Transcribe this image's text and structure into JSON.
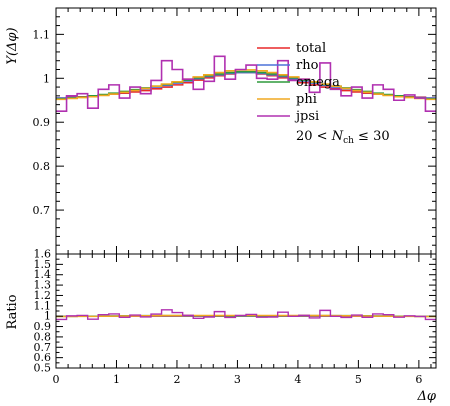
{
  "chart_data": [
    {
      "type": "line",
      "ylabel": "Y(Δφ)",
      "xlim": [
        0,
        6.2832
      ],
      "ylim": [
        0.6,
        1.16
      ],
      "y_ticks": [
        "0.7",
        "0.8",
        "0.9",
        "1",
        "1.1"
      ],
      "legend_placement": "top-right",
      "annotation": "20 < N_ch ≤ 30",
      "annotation_parts": {
        "pre": "20 < ",
        "n": "N",
        "sub": "ch",
        "post": " ≤ 30"
      },
      "bins": 36,
      "series": [
        {
          "name": "total",
          "color": "#e8282a",
          "values": [
            0.955,
            0.957,
            0.958,
            0.96,
            0.962,
            0.964,
            0.966,
            0.969,
            0.972,
            0.976,
            0.98,
            0.985,
            0.99,
            0.996,
            1.001,
            1.006,
            1.01,
            1.013,
            1.013,
            1.01,
            1.006,
            1.001,
            0.996,
            0.99,
            0.985,
            0.98,
            0.976,
            0.972,
            0.969,
            0.966,
            0.964,
            0.962,
            0.96,
            0.958,
            0.957,
            0.955
          ]
        },
        {
          "name": "rho",
          "color": "#4c72d8",
          "values": [
            0.955,
            0.956,
            0.957,
            0.959,
            0.962,
            0.965,
            0.968,
            0.972,
            0.976,
            0.98,
            0.984,
            0.989,
            0.994,
            0.999,
            1.004,
            1.008,
            1.011,
            1.013,
            1.013,
            1.011,
            1.008,
            1.004,
            0.999,
            0.994,
            0.989,
            0.984,
            0.98,
            0.976,
            0.972,
            0.968,
            0.965,
            0.962,
            0.959,
            0.957,
            0.956,
            0.955
          ]
        },
        {
          "name": "omega",
          "color": "#2e9a3c",
          "values": [
            0.953,
            0.955,
            0.957,
            0.96,
            0.963,
            0.966,
            0.97,
            0.974,
            0.978,
            0.982,
            0.986,
            0.991,
            0.996,
            1.001,
            1.006,
            1.01,
            1.013,
            1.015,
            1.015,
            1.013,
            1.01,
            1.006,
            1.001,
            0.996,
            0.991,
            0.986,
            0.982,
            0.978,
            0.974,
            0.97,
            0.966,
            0.963,
            0.96,
            0.957,
            0.955,
            0.953
          ]
        },
        {
          "name": "phi",
          "color": "#f0a820",
          "values": [
            0.952,
            0.954,
            0.956,
            0.958,
            0.961,
            0.964,
            0.968,
            0.972,
            0.977,
            0.982,
            0.987,
            0.992,
            0.998,
            1.003,
            1.008,
            1.013,
            1.017,
            1.019,
            1.019,
            1.017,
            1.013,
            1.008,
            1.003,
            0.998,
            0.992,
            0.987,
            0.982,
            0.977,
            0.972,
            0.968,
            0.964,
            0.961,
            0.958,
            0.956,
            0.954,
            0.952
          ]
        },
        {
          "name": "jpsi",
          "color": "#b030b0",
          "values": [
            0.925,
            0.96,
            0.965,
            0.932,
            0.975,
            0.985,
            0.955,
            0.98,
            0.965,
            0.995,
            1.04,
            1.02,
            0.998,
            0.975,
            0.993,
            1.05,
            0.998,
            1.02,
            1.03,
            1.0,
            0.998,
            1.04,
            0.995,
            0.998,
            0.968,
            1.035,
            0.975,
            0.96,
            0.98,
            0.955,
            0.985,
            0.975,
            0.95,
            0.962,
            0.955,
            0.925
          ]
        }
      ]
    },
    {
      "type": "line",
      "xlabel": "Δφ",
      "ylabel": "Ratio",
      "xlim": [
        0,
        6.2832
      ],
      "ylim": [
        0.5,
        1.6
      ],
      "x_ticks": [
        "0",
        "1",
        "2",
        "3",
        "4",
        "5",
        "6"
      ],
      "y_ticks": [
        "0.5",
        "0.6",
        "0.7",
        "0.8",
        "0.9",
        "1",
        "1.1",
        "1.2",
        "1.3",
        "1.4",
        "1.5",
        "1.6"
      ],
      "series": [
        {
          "name": "total",
          "color": "#e8282a",
          "values": [
            1,
            1,
            1,
            1,
            1,
            1,
            1,
            1,
            1,
            1,
            1,
            1,
            1,
            1,
            1,
            1,
            1,
            1,
            1,
            1,
            1,
            1,
            1,
            1,
            1,
            1,
            1,
            1,
            1,
            1,
            1,
            1,
            1,
            1,
            1,
            1
          ]
        },
        {
          "name": "rho",
          "color": "#4c72d8",
          "values": [
            1.0,
            0.999,
            0.999,
            0.999,
            1.0,
            1.001,
            1.002,
            1.003,
            1.004,
            1.004,
            1.004,
            1.004,
            1.004,
            1.003,
            1.003,
            1.002,
            1.001,
            1.0,
            1.0,
            1.001,
            1.002,
            1.003,
            1.003,
            1.004,
            1.004,
            1.004,
            1.004,
            1.004,
            1.003,
            1.002,
            1.001,
            1.0,
            0.999,
            0.999,
            0.999,
            1.0
          ]
        },
        {
          "name": "omega",
          "color": "#2e9a3c",
          "values": [
            0.998,
            0.998,
            0.999,
            1.0,
            1.001,
            1.002,
            1.004,
            1.005,
            1.006,
            1.006,
            1.006,
            1.006,
            1.006,
            1.005,
            1.005,
            1.004,
            1.003,
            1.002,
            1.002,
            1.003,
            1.004,
            1.005,
            1.005,
            1.006,
            1.006,
            1.006,
            1.006,
            1.006,
            1.005,
            1.004,
            1.002,
            1.001,
            1.0,
            0.999,
            0.998,
            0.998
          ]
        },
        {
          "name": "phi",
          "color": "#f0a820",
          "values": [
            0.997,
            0.997,
            0.998,
            0.998,
            0.999,
            1.0,
            1.002,
            1.003,
            1.005,
            1.006,
            1.007,
            1.007,
            1.008,
            1.007,
            1.007,
            1.007,
            1.007,
            1.006,
            1.006,
            1.007,
            1.007,
            1.007,
            1.007,
            1.008,
            1.007,
            1.007,
            1.006,
            1.005,
            1.003,
            1.002,
            1.0,
            0.999,
            0.998,
            0.998,
            0.997,
            0.997
          ]
        },
        {
          "name": "jpsi",
          "color": "#b030b0",
          "values": [
            0.969,
            1.003,
            1.007,
            0.971,
            1.014,
            1.022,
            0.989,
            1.011,
            0.993,
            1.02,
            1.061,
            1.035,
            1.008,
            0.979,
            0.992,
            1.044,
            0.988,
            1.007,
            1.017,
            0.99,
            0.992,
            1.039,
            0.999,
            1.008,
            0.983,
            1.056,
            0.999,
            0.988,
            1.011,
            0.989,
            1.022,
            1.014,
            0.99,
            1.004,
            0.998,
            0.969
          ]
        }
      ]
    }
  ]
}
